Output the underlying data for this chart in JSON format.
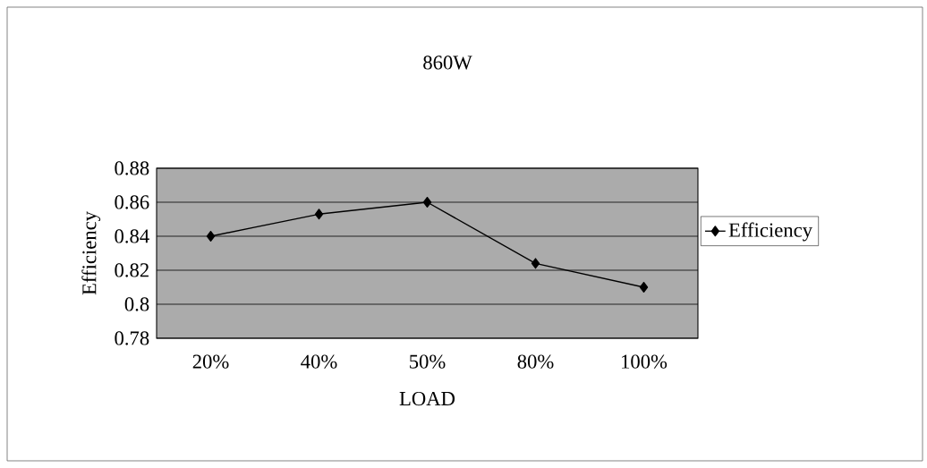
{
  "chart_data": {
    "type": "line",
    "title": "860W",
    "xlabel": "LOAD",
    "ylabel": "Efficiency",
    "categories": [
      "20%",
      "40%",
      "50%",
      "80%",
      "100%"
    ],
    "series": [
      {
        "name": "Efficiency",
        "color": "#000000",
        "values": [
          0.84,
          0.853,
          0.86,
          0.824,
          0.81
        ]
      }
    ],
    "ylim": [
      0.78,
      0.88
    ],
    "yticks": [
      0.78,
      {
        "value": 0.8,
        "label": "0.8"
      },
      0.82,
      0.84,
      0.86,
      0.88
    ],
    "grid": "y",
    "legend": "right",
    "marker": "diamond",
    "line_style": "solid"
  }
}
